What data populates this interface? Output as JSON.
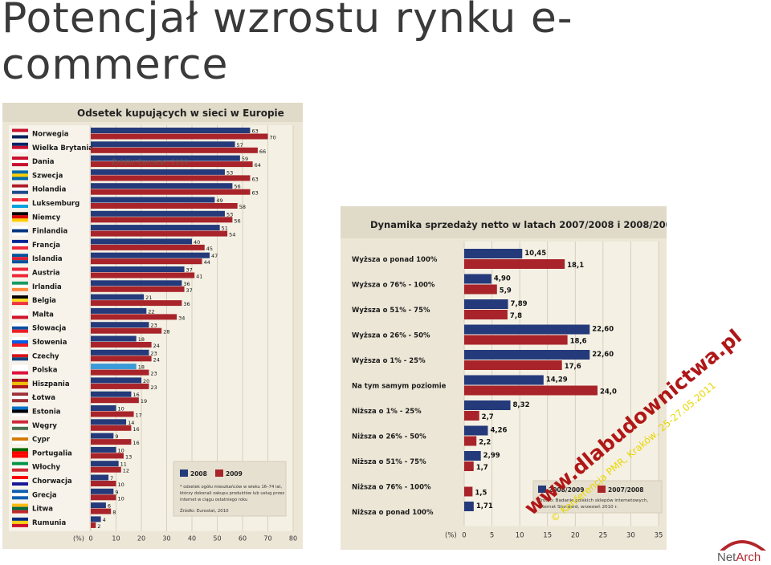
{
  "slide": {
    "title": "Potencjał wzrostu rynku e-commerce"
  },
  "colors": {
    "navy": "#243a7a",
    "red": "#a8242a",
    "panel_bg": "#ece6d6",
    "watermark": "#b01717",
    "watermark2": "#e8d700"
  },
  "logo": {
    "name_part1": "Net",
    "name_part2": "Arch"
  },
  "chart_data": [
    {
      "type": "bar",
      "orientation": "horizontal",
      "title": "Odsetek kupujących w sieci w Europie",
      "overlay_text": "Źródło: Eurostat, 2010",
      "xlabel": "(%)",
      "xlim": [
        0,
        80
      ],
      "xticks": [
        "0",
        "10",
        "20",
        "30",
        "40",
        "50",
        "60",
        "70",
        "80"
      ],
      "categories": [
        "Norwegia",
        "Wielka Brytania",
        "Dania",
        "Szwecja",
        "Holandia",
        "Luksemburg",
        "Niemcy",
        "Finlandia",
        "Francja",
        "Islandia",
        "Austria",
        "Irlandia",
        "Belgia",
        "Malta",
        "Słowacja",
        "Słowenia",
        "Czechy",
        "Polska",
        "Hiszpania",
        "Łotwa",
        "Estonia",
        "Węgry",
        "Cypr",
        "Portugalia",
        "Włochy",
        "Chorwacja",
        "Grecja",
        "Litwa",
        "Rumunia"
      ],
      "series": [
        {
          "name": "2008",
          "color": "#243a7a",
          "values": [
            63,
            57,
            59,
            53,
            56,
            49,
            53,
            51,
            40,
            47,
            37,
            36,
            21,
            22,
            23,
            18,
            23,
            18,
            20,
            16,
            10,
            14,
            9,
            10,
            11,
            7,
            9,
            6,
            4
          ]
        },
        {
          "name": "2009",
          "color": "#a8242a",
          "values": [
            70,
            66,
            64,
            63,
            63,
            58,
            56,
            54,
            45,
            44,
            41,
            37,
            36,
            34,
            28,
            24,
            24,
            23,
            23,
            19,
            17,
            16,
            16,
            13,
            12,
            10,
            10,
            8,
            2
          ]
        }
      ],
      "legend": {
        "placement": "bottom-right",
        "items": [
          "2008",
          "2009"
        ]
      },
      "notes": [
        "* odsetek ogółu mieszkańców w wieku 16–74 lat,",
        "którzy dokonali zakupu produktów lub usług przez",
        "internet w ciągu ostatniego roku"
      ],
      "source": "Źródło: Eurostat, 2010",
      "grid": true
    },
    {
      "type": "bar",
      "orientation": "horizontal",
      "title": "Dynamika sprzedaży netto w latach 2007/2008 i 2008/2009",
      "xlabel": "(%)",
      "xlim": [
        0,
        35
      ],
      "xticks": [
        "0",
        "5",
        "10",
        "15",
        "20",
        "25",
        "30",
        "35"
      ],
      "categories": [
        "Wyższa o ponad 100%",
        "Wyższa o 76% - 100%",
        "Wyższa o 51% - 75%",
        "Wyższa o 26% - 50%",
        "Wyższa o 1% - 25%",
        "Na tym samym poziomie",
        "Niższa o 1% - 25%",
        "Niższa o 26% - 50%",
        "Niższa o 51% - 75%",
        "Niższa o 76% - 100%",
        "Niższa o ponad 100%"
      ],
      "series": [
        {
          "name": "2008/2009",
          "color": "#243a7a",
          "values": [
            10.45,
            4.9,
            7.89,
            22.6,
            22.6,
            14.29,
            8.32,
            4.26,
            2.99,
            null,
            1.71
          ],
          "labels": [
            "10,45",
            "4,90",
            "7,89",
            "22,60",
            "22,60",
            "14,29",
            "8,32",
            "4,26",
            "2,99",
            "",
            "1,71"
          ]
        },
        {
          "name": "2007/2008",
          "color": "#a8242a",
          "values": [
            18.1,
            5.9,
            7.8,
            18.6,
            17.6,
            24.0,
            2.7,
            2.2,
            1.7,
            1.5,
            null
          ],
          "labels": [
            "18,1",
            "5,9",
            "7,8",
            "18,6",
            "17,6",
            "24,0",
            "2,7",
            "2,2",
            "1,7",
            "1,5",
            ""
          ]
        }
      ],
      "legend": {
        "placement": "bottom-right",
        "items": [
          "2008/2009",
          "2007/2008"
        ]
      },
      "source": [
        "Źródło: Badanie polskich sklepów internetowych,",
        "Internet Standard, wrzesień 2010 r."
      ],
      "grid": true
    }
  ],
  "watermark": {
    "line1": "www.dlabudownictwa.pl",
    "line2": "© Konferencja PMR, Kraków, 25-27.05.2011"
  }
}
